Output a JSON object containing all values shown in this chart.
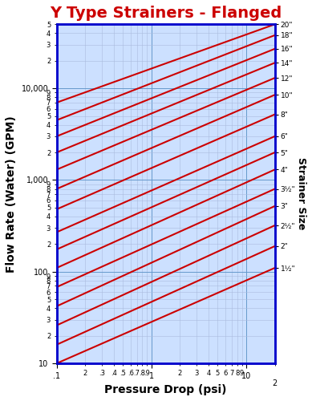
{
  "title": "Y Type Strainers - Flanged",
  "xlabel": "Pressure Drop (psi)",
  "ylabel": "Flow Rate (Water) (GPM)",
  "right_label": "Strainer Size",
  "xlim": [
    0.1,
    20
  ],
  "ylim": [
    10,
    50000
  ],
  "title_color": "#cc0000",
  "title_fontsize": 14,
  "axis_label_fontsize": 10,
  "bg_color": "#cce0ff",
  "grid_color_major": "#6699cc",
  "grid_color_minor": "#aabbdd",
  "border_color": "#0000cc",
  "line_color": "#cc0000",
  "line_width": 1.5,
  "lines": [
    {
      "x1": 0.1,
      "y1": 7000,
      "x2": 20,
      "y2": 50000,
      "label": "20\""
    },
    {
      "x1": 0.1,
      "y1": 4500,
      "x2": 20,
      "y2": 38000,
      "label": "18\""
    },
    {
      "x1": 0.1,
      "y1": 3000,
      "x2": 20,
      "y2": 27000,
      "label": "16\""
    },
    {
      "x1": 0.1,
      "y1": 2000,
      "x2": 20,
      "y2": 19000,
      "label": "14\""
    },
    {
      "x1": 0.1,
      "y1": 1300,
      "x2": 20,
      "y2": 13000,
      "label": "12\""
    },
    {
      "x1": 0.1,
      "y1": 800,
      "x2": 20,
      "y2": 8500,
      "label": "10\""
    },
    {
      "x1": 0.1,
      "y1": 480,
      "x2": 20,
      "y2": 5200,
      "label": "8\""
    },
    {
      "x1": 0.1,
      "y1": 270,
      "x2": 20,
      "y2": 3000,
      "label": "6\""
    },
    {
      "x1": 0.1,
      "y1": 175,
      "x2": 20,
      "y2": 2000,
      "label": "5\""
    },
    {
      "x1": 0.1,
      "y1": 110,
      "x2": 20,
      "y2": 1300,
      "label": "4\""
    },
    {
      "x1": 0.1,
      "y1": 68,
      "x2": 20,
      "y2": 800,
      "label": "3½\""
    },
    {
      "x1": 0.1,
      "y1": 42,
      "x2": 20,
      "y2": 520,
      "label": "3\""
    },
    {
      "x1": 0.1,
      "y1": 26,
      "x2": 20,
      "y2": 320,
      "label": "2½\""
    },
    {
      "x1": 0.1,
      "y1": 16,
      "x2": 20,
      "y2": 190,
      "label": "2\""
    },
    {
      "x1": 0.1,
      "y1": 10,
      "x2": 20,
      "y2": 110,
      "label": "1½\""
    }
  ]
}
